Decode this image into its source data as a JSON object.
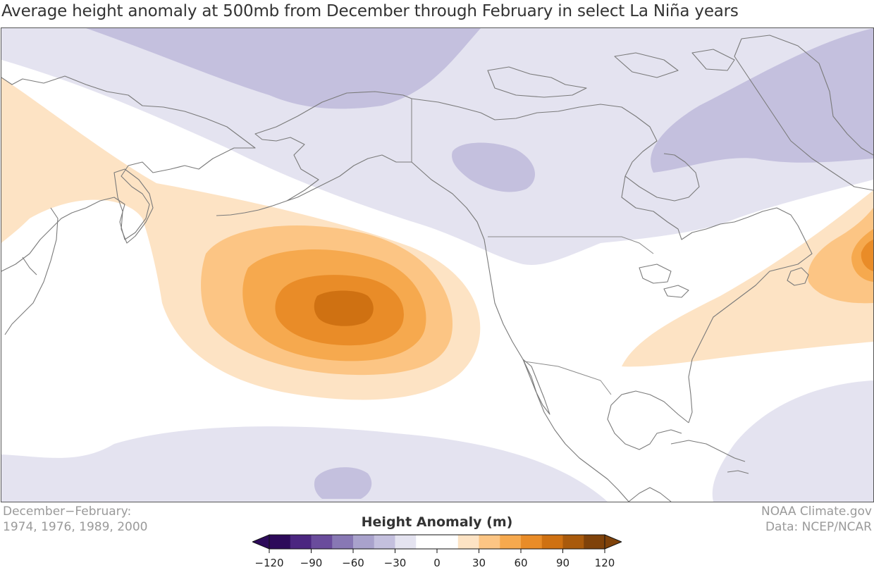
{
  "title": "Average height anomaly at 500mb from December through February in select La Niña years",
  "footer_left": {
    "line1": "December−February:",
    "line2": "1974, 1976, 1989, 2000"
  },
  "footer_right": {
    "line1": "NOAA Climate.gov",
    "line2": "Data: NCEP/NCAR"
  },
  "legend": {
    "title": "Height Anomaly (m)",
    "ticks": [
      "−120",
      "−90",
      "−60",
      "−30",
      "0",
      "30",
      "60",
      "90",
      "120"
    ],
    "colors": [
      "#2d0a5a",
      "#4b2680",
      "#6a4c9c",
      "#8878b4",
      "#a9a2cc",
      "#c4c0de",
      "#e4e3f0",
      "#ffffff",
      "#ffffff",
      "#fde3c4",
      "#fcc584",
      "#f6a94e",
      "#e98c28",
      "#cf7112",
      "#a95a0c",
      "#7f420a"
    ],
    "extend_low_color": "#2d0a5a",
    "extend_high_color": "#7f420a"
  },
  "map": {
    "variable": "500mb height anomaly",
    "units": "m",
    "features": [
      {
        "name": "North Pacific positive anomaly",
        "sign": "positive",
        "peak_level": "90 to 120"
      },
      {
        "name": "Northwest Atlantic positive anomaly",
        "sign": "positive",
        "peak_level": "60 to 90"
      },
      {
        "name": "Canada / Alaska negative anomaly",
        "sign": "negative",
        "peak_level": "-60 to -30"
      },
      {
        "name": "Greenland / Baffin negative anomaly",
        "sign": "negative",
        "peak_level": "-60 to -30"
      },
      {
        "name": "Subtropical Pacific negative anomaly",
        "sign": "negative",
        "peak_level": "-60 to -30"
      }
    ]
  }
}
